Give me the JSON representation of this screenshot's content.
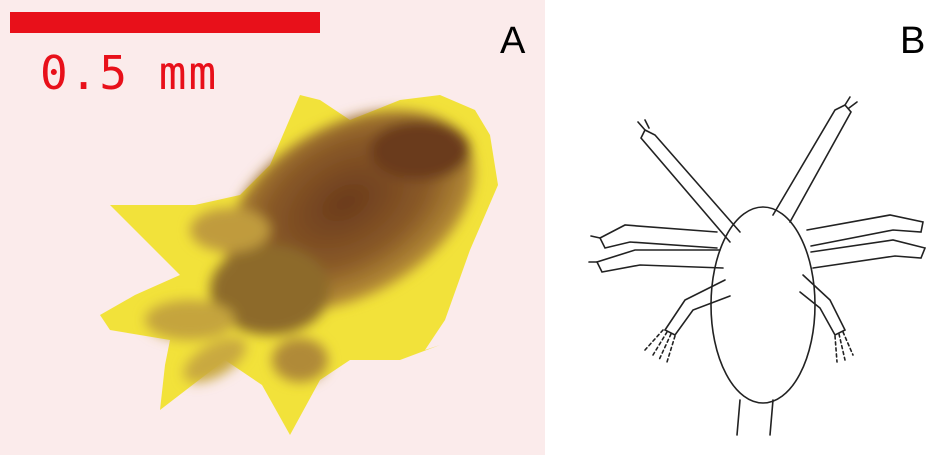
{
  "panel_a": {
    "label": "A",
    "scale_bar_text": "0.5 mm",
    "colors": {
      "background": "#fbebeb",
      "scale": "#e8101a",
      "outline": "#f2e23a",
      "body": "#7a4a20"
    }
  },
  "panel_b": {
    "label": "B",
    "colors": {
      "background": "#ffffff",
      "line": "#222222"
    }
  }
}
